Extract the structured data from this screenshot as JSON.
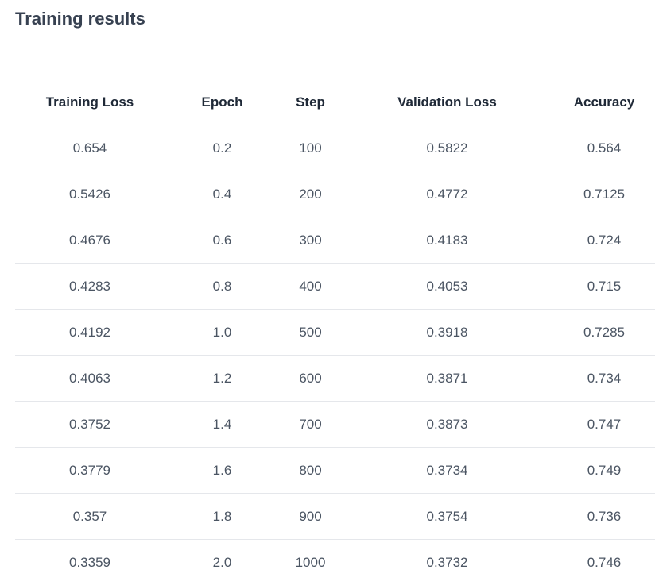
{
  "heading": "Training results",
  "table": {
    "columns": [
      "Training Loss",
      "Epoch",
      "Step",
      "Validation Loss",
      "Accuracy"
    ],
    "rows": [
      [
        "0.654",
        "0.2",
        "100",
        "0.5822",
        "0.564"
      ],
      [
        "0.5426",
        "0.4",
        "200",
        "0.4772",
        "0.7125"
      ],
      [
        "0.4676",
        "0.6",
        "300",
        "0.4183",
        "0.724"
      ],
      [
        "0.4283",
        "0.8",
        "400",
        "0.4053",
        "0.715"
      ],
      [
        "0.4192",
        "1.0",
        "500",
        "0.3918",
        "0.7285"
      ],
      [
        "0.4063",
        "1.2",
        "600",
        "0.3871",
        "0.734"
      ],
      [
        "0.3752",
        "1.4",
        "700",
        "0.3873",
        "0.747"
      ],
      [
        "0.3779",
        "1.6",
        "800",
        "0.3734",
        "0.749"
      ],
      [
        "0.357",
        "1.8",
        "900",
        "0.3754",
        "0.736"
      ],
      [
        "0.3359",
        "2.0",
        "1000",
        "0.3732",
        "0.746"
      ]
    ]
  }
}
